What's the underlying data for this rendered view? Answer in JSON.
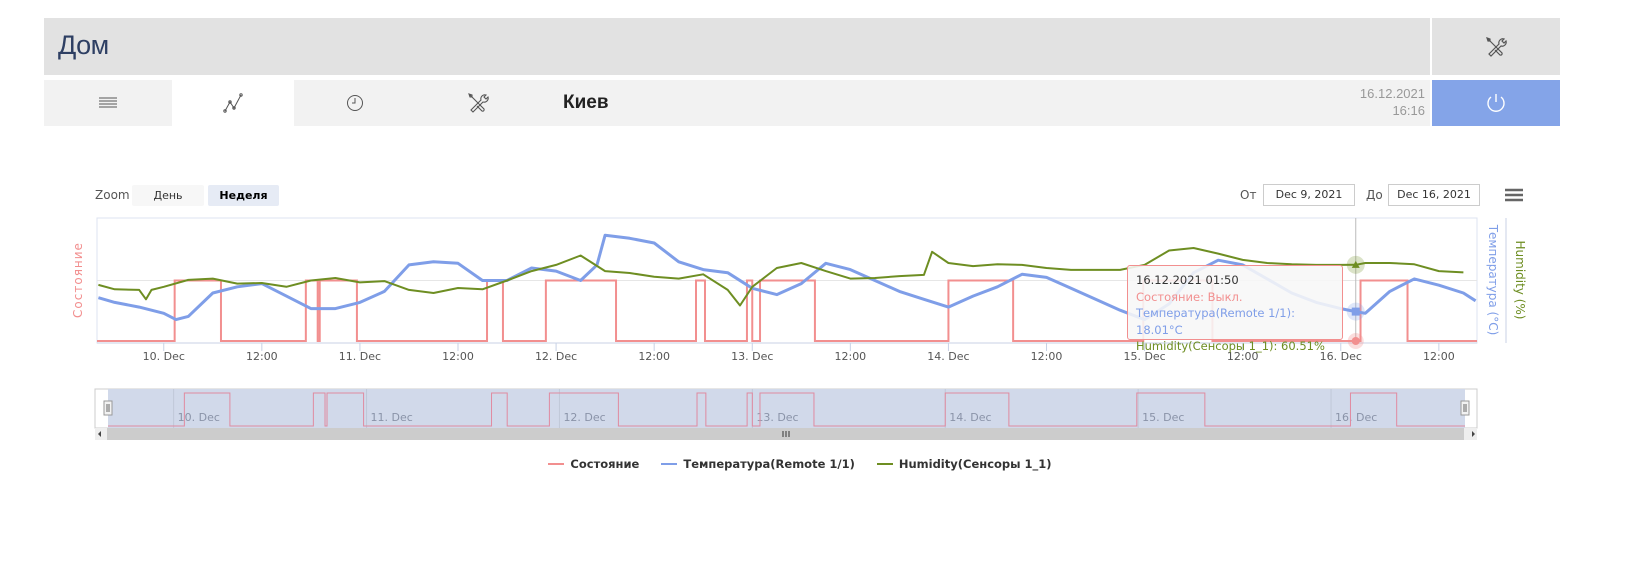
{
  "header": {
    "title": "Дом",
    "tools_icon": "tools-icon"
  },
  "nav": {
    "tabs": [
      {
        "name": "list",
        "icon": "list-icon"
      },
      {
        "name": "chart",
        "icon": "chart-line-icon",
        "active": true
      },
      {
        "name": "schedule",
        "icon": "clock-icon"
      },
      {
        "name": "settings",
        "icon": "tools-icon"
      }
    ],
    "city": "Киев",
    "date": "16.12.2021",
    "time": "16:16",
    "power_icon": "power-icon"
  },
  "toolbar": {
    "zoom_label": "Zoom",
    "zoom_buttons": [
      {
        "label": "День",
        "active": false
      },
      {
        "label": "Неделя",
        "active": true
      }
    ],
    "from_label": "От",
    "from_value": "Dec 9, 2021",
    "to_label": "До",
    "to_value": "Dec 16, 2021",
    "menu_icon": "hamburger-icon"
  },
  "tooltip": {
    "time": "16.12.2021 01:50",
    "state": "Состояние: Выкл.",
    "temperature": "Температура(Remote 1/1): 18.01°C",
    "humidity": "Humidity(Сенсоры 1_1): 60.51%"
  },
  "colors": {
    "state": "#f28f8f",
    "temperature": "#7f9ee8",
    "humidity": "#6e8e22",
    "accent": "#84a4e8"
  },
  "chart_data": {
    "type": "line",
    "x_range": [
      "2021-12-09T15:50",
      "2021-12-16T16:40"
    ],
    "x_ticks": [
      "10. Dec",
      "12:00",
      "11. Dec",
      "12:00",
      "12. Dec",
      "12:00",
      "13. Dec",
      "12:00",
      "14. Dec",
      "12:00",
      "15. Dec",
      "12:00",
      "16. Dec",
      "12:00"
    ],
    "navigator_ticks": [
      "10. Dec",
      "11. Dec",
      "12. Dec",
      "13. Dec",
      "14. Dec",
      "15. Dec",
      "16. Dec"
    ],
    "axes": {
      "state": {
        "title": "Состояние",
        "range": [
          0,
          2
        ],
        "side": "left"
      },
      "temperature": {
        "title": "Температура (°C)",
        "range": [
          16,
          24
        ],
        "side": "right"
      },
      "humidity": {
        "title": "Humidity (%)",
        "range": [
          48,
          68
        ],
        "side": "right"
      }
    },
    "series": [
      {
        "name": "Состояние",
        "axis": "state",
        "step": true,
        "on_intervals": [
          [
            "2021-12-10T01:20",
            "2021-12-10T07:00"
          ],
          [
            "2021-12-10T17:23",
            "2021-12-10T18:50"
          ],
          [
            "2021-12-10T19:05",
            "2021-12-10T23:38"
          ],
          [
            "2021-12-11T15:33",
            "2021-12-11T17:30"
          ],
          [
            "2021-12-11T22:45",
            "2021-12-12T07:20"
          ],
          [
            "2021-12-12T17:07",
            "2021-12-12T18:13"
          ],
          [
            "2021-12-12T23:21",
            "2021-12-13T00:00"
          ],
          [
            "2021-12-13T00:57",
            "2021-12-13T07:40"
          ],
          [
            "2021-12-14T00:00",
            "2021-12-14T07:55"
          ],
          [
            "2021-12-14T23:50",
            "2021-12-15T08:18"
          ],
          [
            "2021-12-16T02:25",
            "2021-12-16T08:10"
          ]
        ]
      },
      {
        "name": "Температура(Remote 1/1)",
        "axis": "temperature",
        "points": [
          [
            "2021-12-09T16:00",
            18.9
          ],
          [
            "2021-12-09T18:00",
            18.6
          ],
          [
            "2021-12-09T21:00",
            18.3
          ],
          [
            "2021-12-10T00:00",
            17.9
          ],
          [
            "2021-12-10T01:30",
            17.5
          ],
          [
            "2021-12-10T03:00",
            17.7
          ],
          [
            "2021-12-10T06:00",
            19.2
          ],
          [
            "2021-12-10T09:00",
            19.6
          ],
          [
            "2021-12-10T12:00",
            19.8
          ],
          [
            "2021-12-10T15:00",
            19.0
          ],
          [
            "2021-12-10T18:00",
            18.2
          ],
          [
            "2021-12-10T21:00",
            18.2
          ],
          [
            "2021-12-11T00:00",
            18.6
          ],
          [
            "2021-12-11T03:00",
            19.3
          ],
          [
            "2021-12-11T06:00",
            21.0
          ],
          [
            "2021-12-11T09:00",
            21.2
          ],
          [
            "2021-12-11T12:00",
            21.1
          ],
          [
            "2021-12-11T15:00",
            20.0
          ],
          [
            "2021-12-11T18:00",
            20.0
          ],
          [
            "2021-12-11T21:00",
            20.8
          ],
          [
            "2021-12-12T00:00",
            20.6
          ],
          [
            "2021-12-12T03:00",
            20.0
          ],
          [
            "2021-12-12T05:00",
            21.0
          ],
          [
            "2021-12-12T06:00",
            22.9
          ],
          [
            "2021-12-12T09:00",
            22.7
          ],
          [
            "2021-12-12T12:00",
            22.4
          ],
          [
            "2021-12-12T15:00",
            21.2
          ],
          [
            "2021-12-12T18:00",
            20.7
          ],
          [
            "2021-12-12T21:00",
            20.5
          ],
          [
            "2021-12-13T00:00",
            19.5
          ],
          [
            "2021-12-13T03:00",
            19.1
          ],
          [
            "2021-12-13T06:00",
            19.8
          ],
          [
            "2021-12-13T09:00",
            21.1
          ],
          [
            "2021-12-13T12:00",
            20.7
          ],
          [
            "2021-12-13T15:00",
            20.0
          ],
          [
            "2021-12-13T18:00",
            19.3
          ],
          [
            "2021-12-13T21:00",
            18.8
          ],
          [
            "2021-12-14T00:00",
            18.3
          ],
          [
            "2021-12-14T03:00",
            19.0
          ],
          [
            "2021-12-14T06:00",
            19.6
          ],
          [
            "2021-12-14T09:00",
            20.4
          ],
          [
            "2021-12-14T12:00",
            20.2
          ],
          [
            "2021-12-14T15:00",
            19.5
          ],
          [
            "2021-12-14T18:00",
            18.8
          ],
          [
            "2021-12-14T21:00",
            18.1
          ],
          [
            "2021-12-15T00:00",
            17.5
          ],
          [
            "2021-12-15T03:00",
            18.5
          ],
          [
            "2021-12-15T06:00",
            20.5
          ],
          [
            "2021-12-15T09:00",
            21.3
          ],
          [
            "2021-12-15T12:00",
            21.0
          ],
          [
            "2021-12-15T15:00",
            20.1
          ],
          [
            "2021-12-15T18:00",
            19.2
          ],
          [
            "2021-12-15T21:00",
            18.6
          ],
          [
            "2021-12-16T00:00",
            18.2
          ],
          [
            "2021-12-16T01:50",
            18.01
          ],
          [
            "2021-12-16T03:00",
            17.9
          ],
          [
            "2021-12-16T06:00",
            19.3
          ],
          [
            "2021-12-16T09:00",
            20.1
          ],
          [
            "2021-12-16T12:00",
            19.7
          ],
          [
            "2021-12-16T15:00",
            19.2
          ],
          [
            "2021-12-16T16:30",
            18.7
          ]
        ]
      },
      {
        "name": "Humidity(Сенсоры 1_1)",
        "axis": "humidity",
        "points": [
          [
            "2021-12-09T16:00",
            57.3
          ],
          [
            "2021-12-09T18:00",
            56.6
          ],
          [
            "2021-12-09T21:00",
            56.5
          ],
          [
            "2021-12-09T21:50",
            55.0
          ],
          [
            "2021-12-09T22:30",
            56.5
          ],
          [
            "2021-12-10T00:00",
            57.0
          ],
          [
            "2021-12-10T03:00",
            58.1
          ],
          [
            "2021-12-10T06:00",
            58.3
          ],
          [
            "2021-12-10T09:00",
            57.5
          ],
          [
            "2021-12-10T12:00",
            57.6
          ],
          [
            "2021-12-10T15:00",
            57.0
          ],
          [
            "2021-12-10T18:00",
            58.0
          ],
          [
            "2021-12-10T21:00",
            58.4
          ],
          [
            "2021-12-11T00:00",
            57.7
          ],
          [
            "2021-12-11T03:00",
            57.9
          ],
          [
            "2021-12-11T06:00",
            56.5
          ],
          [
            "2021-12-11T09:00",
            56.0
          ],
          [
            "2021-12-11T12:00",
            56.8
          ],
          [
            "2021-12-11T15:00",
            56.6
          ],
          [
            "2021-12-11T18:00",
            58.0
          ],
          [
            "2021-12-11T21:00",
            59.5
          ],
          [
            "2021-12-12T00:00",
            60.5
          ],
          [
            "2021-12-12T03:00",
            62.0
          ],
          [
            "2021-12-12T06:00",
            59.5
          ],
          [
            "2021-12-12T09:00",
            59.2
          ],
          [
            "2021-12-12T12:00",
            58.6
          ],
          [
            "2021-12-12T15:00",
            58.3
          ],
          [
            "2021-12-12T18:00",
            59.0
          ],
          [
            "2021-12-12T21:00",
            56.5
          ],
          [
            "2021-12-12T22:30",
            54.0
          ],
          [
            "2021-12-13T00:00",
            57.0
          ],
          [
            "2021-12-13T03:00",
            60.0
          ],
          [
            "2021-12-13T06:00",
            60.8
          ],
          [
            "2021-12-13T09:00",
            59.5
          ],
          [
            "2021-12-13T12:00",
            58.3
          ],
          [
            "2021-12-13T15:00",
            58.4
          ],
          [
            "2021-12-13T18:00",
            58.7
          ],
          [
            "2021-12-13T21:00",
            58.9
          ],
          [
            "2021-12-13T22:00",
            62.6
          ],
          [
            "2021-12-14T00:00",
            60.8
          ],
          [
            "2021-12-14T03:00",
            60.3
          ],
          [
            "2021-12-14T06:00",
            60.6
          ],
          [
            "2021-12-14T09:00",
            60.5
          ],
          [
            "2021-12-14T12:00",
            60.0
          ],
          [
            "2021-12-14T15:00",
            59.7
          ],
          [
            "2021-12-14T18:00",
            59.7
          ],
          [
            "2021-12-14T21:00",
            59.7
          ],
          [
            "2021-12-15T00:00",
            60.5
          ],
          [
            "2021-12-15T03:00",
            62.8
          ],
          [
            "2021-12-15T06:00",
            63.2
          ],
          [
            "2021-12-15T09:00",
            62.3
          ],
          [
            "2021-12-15T12:00",
            61.3
          ],
          [
            "2021-12-15T15:00",
            60.8
          ],
          [
            "2021-12-15T18:00",
            60.6
          ],
          [
            "2021-12-15T21:00",
            60.5
          ],
          [
            "2021-12-16T00:00",
            60.5
          ],
          [
            "2021-12-16T01:50",
            60.51
          ],
          [
            "2021-12-16T03:00",
            60.8
          ],
          [
            "2021-12-16T06:00",
            60.8
          ],
          [
            "2021-12-16T09:00",
            60.6
          ],
          [
            "2021-12-16T12:00",
            59.5
          ],
          [
            "2021-12-16T15:00",
            59.3
          ]
        ]
      }
    ],
    "crosshair": "2021-12-16T01:50",
    "legend": {
      "placement": "bottom",
      "items": [
        "Состояние",
        "Температура(Remote 1/1)",
        "Humidity(Сенсоры 1_1)"
      ]
    },
    "grid": true
  }
}
